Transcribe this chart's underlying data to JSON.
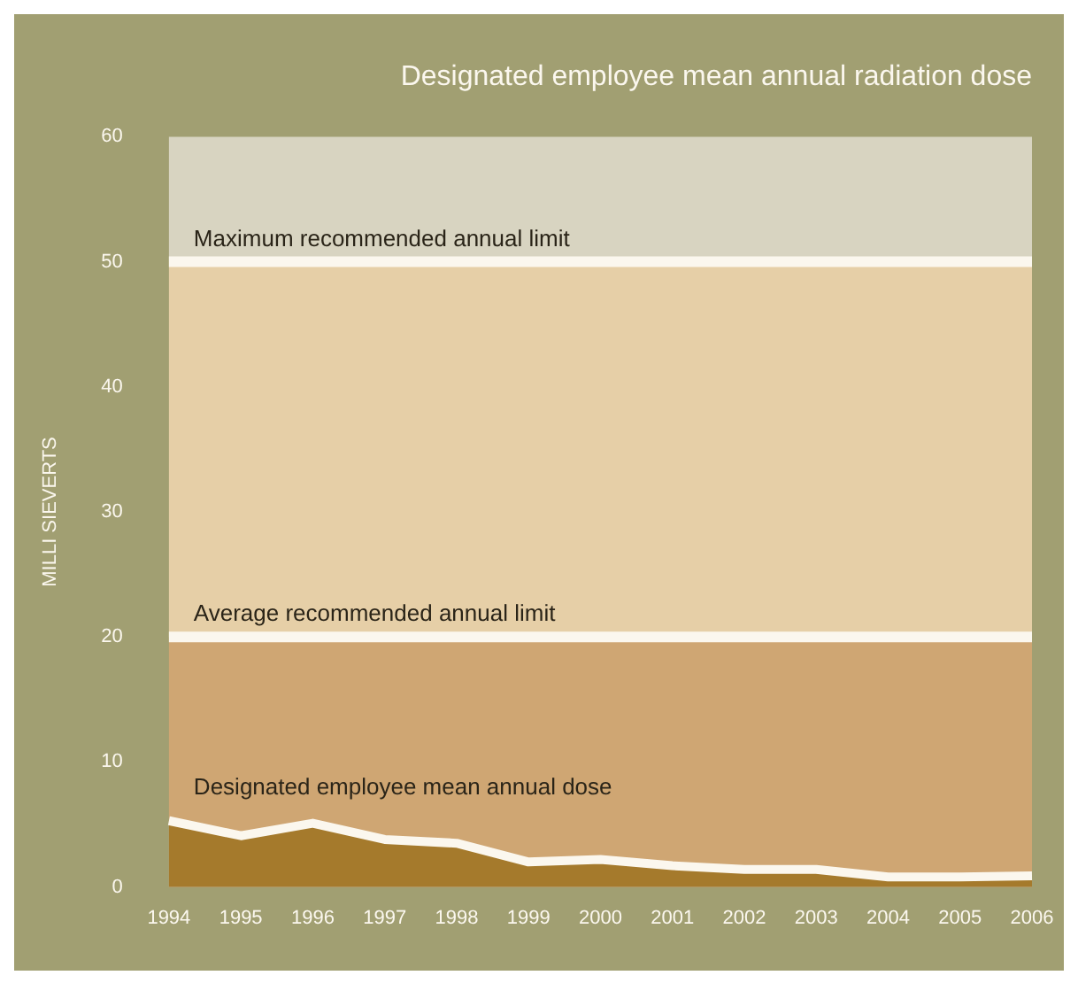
{
  "chart_data": {
    "type": "area",
    "title": "Designated employee mean annual radiation dose",
    "ylabel": "MILLI SIEVERTS",
    "categories": [
      "1994",
      "1995",
      "1996",
      "1997",
      "1998",
      "1999",
      "2000",
      "2001",
      "2002",
      "2003",
      "2004",
      "2005",
      "2006"
    ],
    "series": [
      {
        "name": "Designated employee mean annual dose",
        "color": "#a57a2c",
        "values": [
          5.3,
          4.1,
          5.1,
          3.8,
          3.5,
          2.0,
          2.2,
          1.7,
          1.4,
          1.4,
          0.8,
          0.8,
          0.9
        ]
      }
    ],
    "ylim": [
      0,
      60
    ],
    "yticks": [
      0,
      10,
      20,
      30,
      40,
      50,
      60
    ],
    "grid": false,
    "legend": false,
    "bands": [
      {
        "axis": "y",
        "from": 0,
        "to": 20,
        "color": "#cfa673"
      },
      {
        "axis": "y",
        "from": 20,
        "to": 50,
        "color": "#e6cfa7"
      },
      {
        "axis": "y",
        "from": 50,
        "to": 60,
        "color": "#d8d4c1"
      }
    ],
    "ref_lines": [
      {
        "axis": "y",
        "value": 50,
        "label": "Maximum recommended annual limit",
        "color": "#fbf7ee"
      },
      {
        "axis": "y",
        "value": 20,
        "label": "Average recommended annual limit",
        "color": "#fbf7ee"
      }
    ]
  }
}
